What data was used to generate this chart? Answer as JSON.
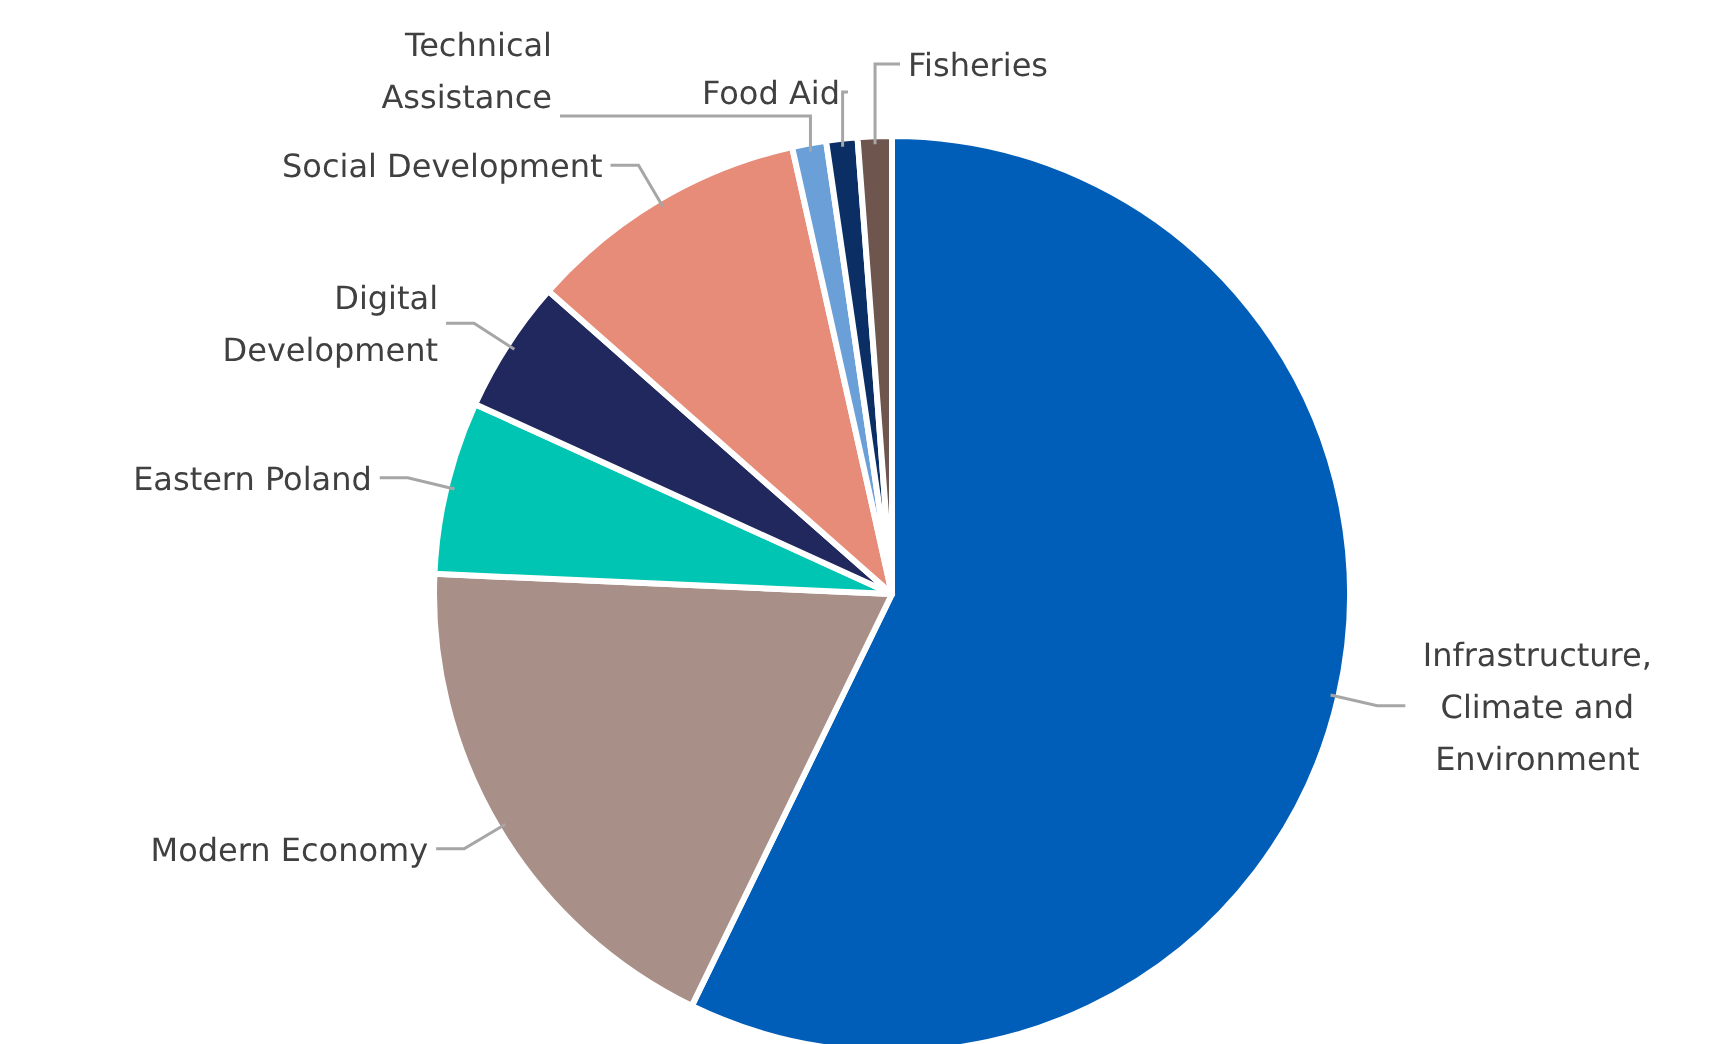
{
  "chart_data": {
    "type": "pie",
    "categories": [
      "Infrastructure, Climate and Environment",
      "Modern Economy",
      "Eastern Poland",
      "Digital Development",
      "Social Development",
      "Technical Assistance",
      "Food Aid",
      "Fisheries"
    ],
    "values": [
      57.2,
      18.5,
      6.1,
      4.7,
      10,
      1.2,
      1.1,
      1.2
    ],
    "colors": [
      "#005eb8",
      "#a89088",
      "#00c5b3",
      "#20285e",
      "#e68c78",
      "#6a9fd8",
      "#0b2e64",
      "#6e564e"
    ]
  }
}
